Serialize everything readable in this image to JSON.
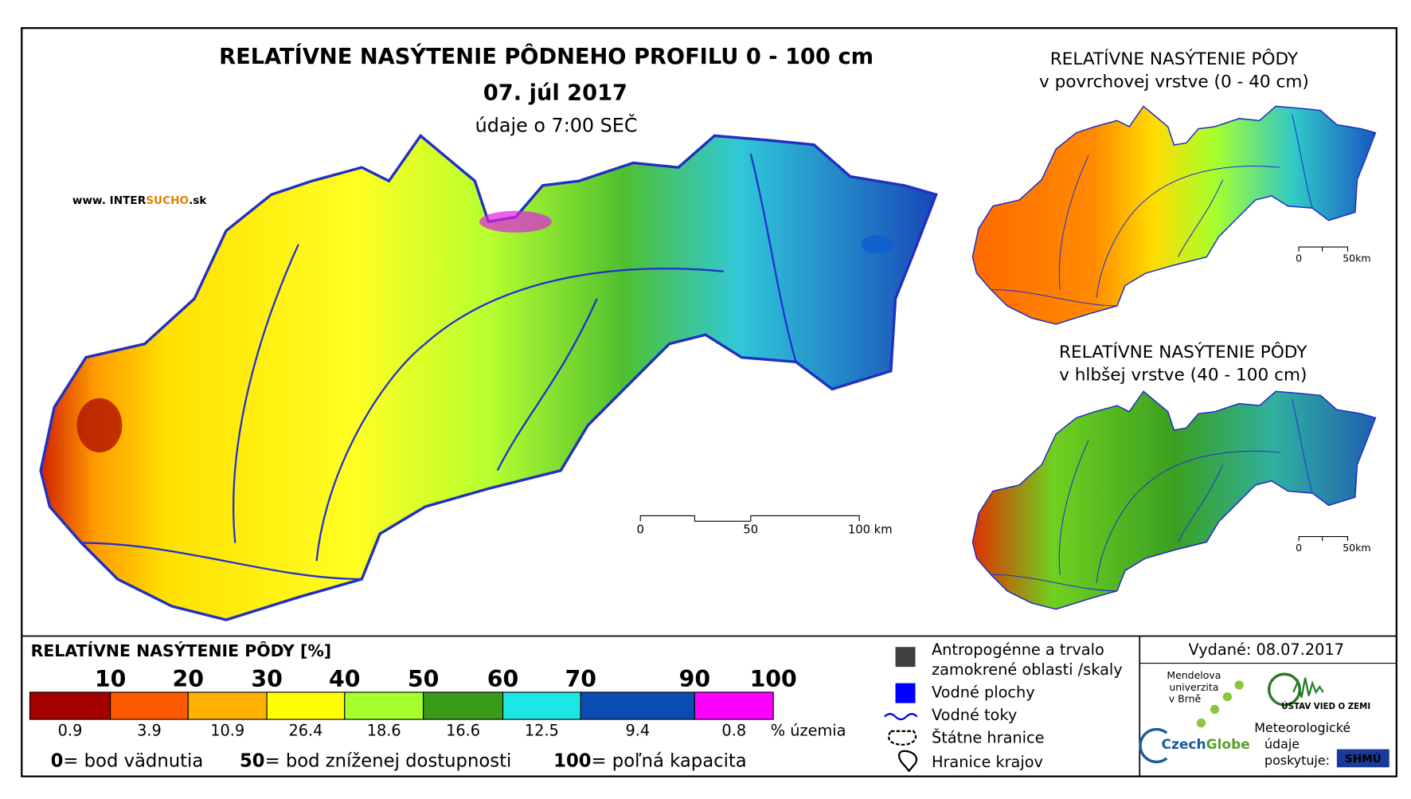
{
  "header": {
    "title": "RELATÍVNE NASÝTENIE PÔDNEHO PROFILU 0 - 100 cm",
    "date": "07. júl 2017",
    "time_note": "údaje o 7:00 SEČ",
    "website": [
      "www. INTER",
      "SUCHO",
      ".sk"
    ]
  },
  "main_map": {
    "scale": [
      "0",
      "50",
      "100 km"
    ]
  },
  "insets": [
    {
      "title": [
        "RELATÍVNE NASÝTENIE PÔDY",
        "v povrchovej vrstve (0 - 40 cm)"
      ],
      "scale": [
        "0",
        "50km"
      ]
    },
    {
      "title": [
        "RELATÍVNE NASÝTENIE PÔDY",
        "v hlbšej vrstve (40 - 100 cm)"
      ],
      "scale": [
        "0",
        "50km"
      ]
    }
  ],
  "legend": {
    "title": "RELATÍVNE NASÝTENIE PÔDY [%]",
    "thresholds": [
      "10",
      "20",
      "30",
      "40",
      "50",
      "60",
      "70",
      "90",
      "100"
    ],
    "colors": [
      "#a50000",
      "#ff5a00",
      "#ffb300",
      "#ffff00",
      "#a6ff2e",
      "#3a9a1a",
      "#1ee6e6",
      "#0a4cb4",
      "#ff00ff"
    ],
    "shares": [
      "0.9",
      "3.9",
      "10.9",
      "26.4",
      "18.6",
      "16.6",
      "12.5",
      "9.4",
      "0.8"
    ],
    "shares_unit": "% územia",
    "notes": [
      {
        "key": "0",
        "text": "= bod vädnutia"
      },
      {
        "key": "50",
        "text": "= bod zníženej dostupnosti"
      },
      {
        "key": "100",
        "text": "= poľná kapacita"
      }
    ]
  },
  "symbols": {
    "anthropogenic": [
      "Antropogénne a trvalo",
      "zamokrené oblasti /skaly"
    ],
    "water_bodies": "Vodné plochy",
    "rivers": "Vodné toky",
    "state_border": "Štátne hranice",
    "region_border": "Hranice krajov"
  },
  "credits": {
    "issued": "Vydané: 08.07.2017",
    "mendel": [
      "Mendelova",
      "univerzita",
      "v Brně"
    ],
    "czechglobe": [
      "Czech",
      "Globe"
    ],
    "ustav": "ÚSTAV VIED O ZEMI",
    "meteo": [
      "Meteorologické",
      "údaje",
      "poskytuje:"
    ],
    "shmu": "SHMÚ"
  }
}
